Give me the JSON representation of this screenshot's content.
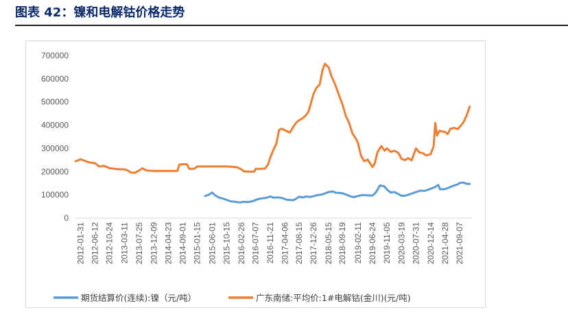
{
  "page": {
    "figure_title": "图表 42：镍和电解钴价格走势"
  },
  "colors": {
    "nickel": "#5b9bd5",
    "cobalt": "#ed7d31",
    "title": "#0b2a6b"
  },
  "chart_data": {
    "type": "line",
    "title": "",
    "xlabel": "",
    "ylabel": "",
    "ylim": [
      0,
      700000
    ],
    "yticks": [
      "700000",
      "600000",
      "500000",
      "400000",
      "300000",
      "200000",
      "100000",
      "0"
    ],
    "ytick_values": [
      700000,
      600000,
      500000,
      400000,
      300000,
      200000,
      100000,
      0
    ],
    "xticks": [
      "2012-01-31",
      "2012-06-12",
      "2012-10-24",
      "2013-03-11",
      "2013-07-25",
      "2013-12-09",
      "2014-04-23",
      "2014-09-01",
      "2015-01-15",
      "2015-06-01",
      "2015-10-15",
      "2016-02-26",
      "2016-07-07",
      "2016-11-21",
      "2017-04-06",
      "2017-08-15",
      "2017-12-26",
      "2018-05-15",
      "2018-09-19",
      "2019-02-11",
      "2019-06-24",
      "2019-11-05",
      "2020-03-19",
      "2020-07-31",
      "2020-12-14",
      "2021-04-28",
      "2021-09-07"
    ],
    "x_range": [
      "2011-12-01",
      "2021-12-31"
    ],
    "legend_position": "bottom",
    "series": [
      {
        "name": "期货结算价(连续):镍（元/吨）",
        "color": "#5b9bd5",
        "points": [
          [
            "2015-03-27",
            95000
          ],
          [
            "2015-05-01",
            100000
          ],
          [
            "2015-06-01",
            110000
          ],
          [
            "2015-07-01",
            97000
          ],
          [
            "2015-08-05",
            88000
          ],
          [
            "2015-09-10",
            84000
          ],
          [
            "2015-10-15",
            78000
          ],
          [
            "2015-11-20",
            72000
          ],
          [
            "2015-12-31",
            70000
          ],
          [
            "2016-02-15",
            67000
          ],
          [
            "2016-03-15",
            70000
          ],
          [
            "2016-04-20",
            69000
          ],
          [
            "2016-05-25",
            71000
          ],
          [
            "2016-06-20",
            74000
          ],
          [
            "2016-07-07",
            78000
          ],
          [
            "2016-08-10",
            83000
          ],
          [
            "2016-09-10",
            85000
          ],
          [
            "2016-10-15",
            87000
          ],
          [
            "2016-11-21",
            93000
          ],
          [
            "2016-12-20",
            88000
          ],
          [
            "2017-01-20",
            89000
          ],
          [
            "2017-02-20",
            88000
          ],
          [
            "2017-03-25",
            84000
          ],
          [
            "2017-04-20",
            79000
          ],
          [
            "2017-05-20",
            78000
          ],
          [
            "2017-06-25",
            77000
          ],
          [
            "2017-08-15",
            92000
          ],
          [
            "2017-09-20",
            89000
          ],
          [
            "2017-10-20",
            93000
          ],
          [
            "2017-11-25",
            91000
          ],
          [
            "2017-12-26",
            94000
          ],
          [
            "2018-01-20",
            98000
          ],
          [
            "2018-03-10",
            101000
          ],
          [
            "2018-05-15",
            112000
          ],
          [
            "2018-06-20",
            115000
          ],
          [
            "2018-07-20",
            109000
          ],
          [
            "2018-08-20",
            108000
          ],
          [
            "2018-09-19",
            107000
          ],
          [
            "2018-10-20",
            102000
          ],
          [
            "2018-11-30",
            94000
          ],
          [
            "2018-12-31",
            90000
          ],
          [
            "2019-02-11",
            95000
          ],
          [
            "2019-03-20",
            99000
          ],
          [
            "2019-05-01",
            98000
          ],
          [
            "2019-06-24",
            97000
          ],
          [
            "2019-07-25",
            110000
          ],
          [
            "2019-09-02",
            141000
          ],
          [
            "2019-10-10",
            137000
          ],
          [
            "2019-11-05",
            123000
          ],
          [
            "2019-12-10",
            110000
          ],
          [
            "2020-01-15",
            112000
          ],
          [
            "2020-02-20",
            103000
          ],
          [
            "2020-03-19",
            96000
          ],
          [
            "2020-04-25",
            97000
          ],
          [
            "2020-05-30",
            102000
          ],
          [
            "2020-07-31",
            112000
          ],
          [
            "2020-09-10",
            118000
          ],
          [
            "2020-10-20",
            117000
          ],
          [
            "2020-12-14",
            126000
          ],
          [
            "2021-01-20",
            133000
          ],
          [
            "2021-02-22",
            143000
          ],
          [
            "2021-03-10",
            124000
          ],
          [
            "2021-04-28",
            125000
          ],
          [
            "2021-06-01",
            131000
          ],
          [
            "2021-07-15",
            140000
          ],
          [
            "2021-08-20",
            145000
          ],
          [
            "2021-09-07",
            151000
          ],
          [
            "2021-10-10",
            153000
          ],
          [
            "2021-11-10",
            148000
          ],
          [
            "2021-12-10",
            147000
          ]
        ]
      },
      {
        "name": "广东南储:平均价:1#电解钴(金川)(元/吨)",
        "color": "#ed7d31",
        "points": [
          [
            "2011-12-15",
            245000
          ],
          [
            "2012-01-31",
            253000
          ],
          [
            "2012-03-01",
            248000
          ],
          [
            "2012-04-15",
            240000
          ],
          [
            "2012-06-12",
            236000
          ],
          [
            "2012-07-20",
            222000
          ],
          [
            "2012-09-01",
            225000
          ],
          [
            "2012-10-24",
            215000
          ],
          [
            "2012-12-10",
            212000
          ],
          [
            "2013-01-20",
            210000
          ],
          [
            "2013-03-11",
            210000
          ],
          [
            "2013-04-10",
            205000
          ],
          [
            "2013-05-10",
            196000
          ],
          [
            "2013-06-15",
            195000
          ],
          [
            "2013-07-25",
            205000
          ],
          [
            "2013-08-25",
            214000
          ],
          [
            "2013-10-01",
            205000
          ],
          [
            "2013-12-09",
            203000
          ],
          [
            "2014-02-15",
            203000
          ],
          [
            "2014-04-23",
            203000
          ],
          [
            "2014-06-15",
            203000
          ],
          [
            "2014-07-15",
            203000
          ],
          [
            "2014-08-01",
            230000
          ],
          [
            "2014-09-01",
            232000
          ],
          [
            "2014-10-10",
            232000
          ],
          [
            "2014-11-01",
            212000
          ],
          [
            "2014-12-15",
            212000
          ],
          [
            "2015-01-15",
            222000
          ],
          [
            "2015-06-01",
            222000
          ],
          [
            "2015-10-15",
            222000
          ],
          [
            "2016-01-15",
            219000
          ],
          [
            "2016-02-26",
            210000
          ],
          [
            "2016-03-20",
            201000
          ],
          [
            "2016-05-20",
            200000
          ],
          [
            "2016-06-25",
            200000
          ],
          [
            "2016-07-07",
            212000
          ],
          [
            "2016-08-20",
            212000
          ],
          [
            "2016-09-30",
            213000
          ],
          [
            "2016-10-30",
            230000
          ],
          [
            "2016-11-21",
            262000
          ],
          [
            "2016-12-25",
            300000
          ],
          [
            "2017-01-15",
            320000
          ],
          [
            "2017-02-10",
            380000
          ],
          [
            "2017-03-05",
            385000
          ],
          [
            "2017-04-06",
            378000
          ],
          [
            "2017-05-20",
            368000
          ],
          [
            "2017-06-20",
            392000
          ],
          [
            "2017-07-20",
            412000
          ],
          [
            "2017-08-15",
            422000
          ],
          [
            "2017-09-10",
            428000
          ],
          [
            "2017-10-15",
            442000
          ],
          [
            "2017-11-10",
            460000
          ],
          [
            "2017-12-26",
            535000
          ],
          [
            "2018-01-20",
            560000
          ],
          [
            "2018-02-20",
            575000
          ],
          [
            "2018-03-20",
            640000
          ],
          [
            "2018-04-10",
            665000
          ],
          [
            "2018-05-15",
            648000
          ],
          [
            "2018-06-10",
            610000
          ],
          [
            "2018-07-10",
            580000
          ],
          [
            "2018-08-10",
            540000
          ],
          [
            "2018-09-19",
            490000
          ],
          [
            "2018-10-20",
            440000
          ],
          [
            "2018-11-20",
            410000
          ],
          [
            "2018-12-20",
            365000
          ],
          [
            "2019-01-25",
            340000
          ],
          [
            "2019-02-11",
            322000
          ],
          [
            "2019-03-10",
            268000
          ],
          [
            "2019-04-10",
            245000
          ],
          [
            "2019-05-10",
            252000
          ],
          [
            "2019-06-24",
            220000
          ],
          [
            "2019-07-15",
            235000
          ],
          [
            "2019-08-10",
            285000
          ],
          [
            "2019-09-15",
            310000
          ],
          [
            "2019-10-15",
            290000
          ],
          [
            "2019-11-05",
            300000
          ],
          [
            "2019-12-10",
            285000
          ],
          [
            "2020-01-15",
            290000
          ],
          [
            "2020-02-20",
            280000
          ],
          [
            "2020-03-19",
            255000
          ],
          [
            "2020-04-20",
            250000
          ],
          [
            "2020-05-20",
            258000
          ],
          [
            "2020-06-20",
            248000
          ],
          [
            "2020-07-31",
            300000
          ],
          [
            "2020-09-01",
            282000
          ],
          [
            "2020-10-01",
            280000
          ],
          [
            "2020-11-01",
            270000
          ],
          [
            "2020-12-14",
            275000
          ],
          [
            "2021-01-10",
            308000
          ],
          [
            "2021-01-25",
            410000
          ],
          [
            "2021-02-10",
            355000
          ],
          [
            "2021-03-05",
            376000
          ],
          [
            "2021-04-28",
            370000
          ],
          [
            "2021-05-20",
            362000
          ],
          [
            "2021-06-15",
            385000
          ],
          [
            "2021-07-20",
            388000
          ],
          [
            "2021-08-20",
            383000
          ],
          [
            "2021-09-07",
            392000
          ],
          [
            "2021-10-10",
            410000
          ],
          [
            "2021-11-10",
            440000
          ],
          [
            "2021-12-10",
            480000
          ]
        ]
      }
    ]
  }
}
